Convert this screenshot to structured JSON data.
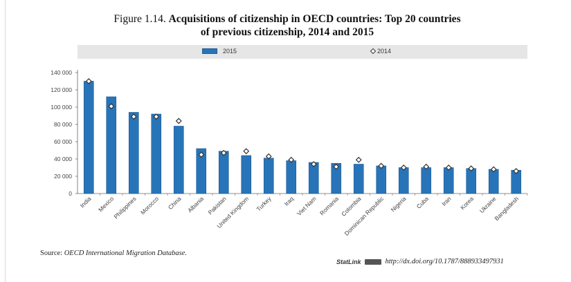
{
  "figure": {
    "number": "Figure 1.14.",
    "title_line1": "Acquisitions of citizenship in OECD countries: Top 20 countries",
    "title_line2": "of previous citizenship, 2014 and 2015"
  },
  "legend": {
    "series_2015": "2015",
    "series_2014": "2014"
  },
  "colors": {
    "bar": "#2874b8",
    "bar_edge": "#1d5b93",
    "marker": "#333333",
    "legend_band": "#e6e6e6"
  },
  "chart_data": {
    "type": "bar",
    "categories": [
      "India",
      "Mexico",
      "Philippines",
      "Morocco",
      "China",
      "Albania",
      "Pakistan",
      "United Kingdom",
      "Turkey",
      "Iraq",
      "Viet Nam",
      "Romania",
      "Colombia",
      "Dominican Republic",
      "Nigeria",
      "Cuba",
      "Iran",
      "Korea",
      "Ukraine",
      "Bangladesh"
    ],
    "series": [
      {
        "name": "2015",
        "style": "bar",
        "values": [
          130000,
          112000,
          94000,
          92000,
          78000,
          52000,
          49000,
          44000,
          41000,
          38000,
          36000,
          35000,
          34000,
          32000,
          30000,
          30000,
          30000,
          29000,
          28000,
          27000
        ]
      },
      {
        "name": "2014",
        "style": "diamond-marker",
        "values": [
          130000,
          101000,
          89000,
          89000,
          84000,
          45000,
          47000,
          49000,
          43000,
          39000,
          34000,
          31000,
          39000,
          32000,
          30000,
          31000,
          30000,
          29000,
          28000,
          26000
        ]
      }
    ],
    "yticks": [
      "0",
      "20 000",
      "40 000",
      "60 000",
      "80 000",
      "100 000",
      "120 000",
      "140 000"
    ],
    "ylim": [
      0,
      140000
    ],
    "grid": false,
    "legend_position": "top"
  },
  "footer": {
    "source_label": "Source:",
    "source_text": "OECD International Migration Database.",
    "statlink_brand": "StatLink",
    "statlink_url": "http://dx.doi.org/10.1787/888933497931"
  }
}
